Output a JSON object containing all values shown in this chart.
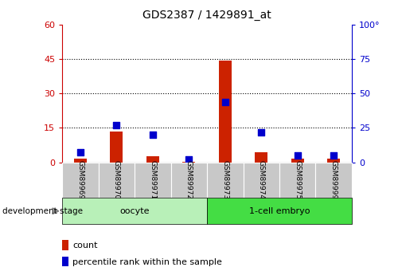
{
  "title": "GDS2387 / 1429891_at",
  "samples": [
    "GSM89969",
    "GSM89970",
    "GSM89971",
    "GSM89972",
    "GSM89973",
    "GSM89974",
    "GSM89975",
    "GSM89999"
  ],
  "count_values": [
    1.5,
    13.5,
    2.5,
    0.3,
    44.5,
    4.5,
    1.5,
    1.5
  ],
  "percentile_values": [
    7,
    27,
    20,
    2,
    44,
    22,
    5,
    5
  ],
  "groups": [
    {
      "label": "oocyte",
      "indices": [
        0,
        1,
        2,
        3
      ],
      "color": "#B8F0B8"
    },
    {
      "label": "1-cell embryo",
      "indices": [
        4,
        5,
        6,
        7
      ],
      "color": "#44DD44"
    }
  ],
  "left_ylim": [
    0,
    60
  ],
  "right_ylim": [
    0,
    100
  ],
  "left_yticks": [
    0,
    15,
    30,
    45,
    60
  ],
  "right_yticks": [
    0,
    25,
    50,
    75,
    100
  ],
  "right_yticklabels": [
    "0",
    "25",
    "50",
    "75",
    "100°"
  ],
  "left_ycolor": "#CC0000",
  "right_ycolor": "#0000CC",
  "bar_color": "#CC2200",
  "dot_color": "#0000CC",
  "grid_yticks": [
    15,
    30,
    45
  ],
  "bar_width": 0.35,
  "dot_size": 28,
  "sample_box_color": "#C8C8C8",
  "legend_bar_color": "#CC2200",
  "legend_dot_color": "#0000CC"
}
